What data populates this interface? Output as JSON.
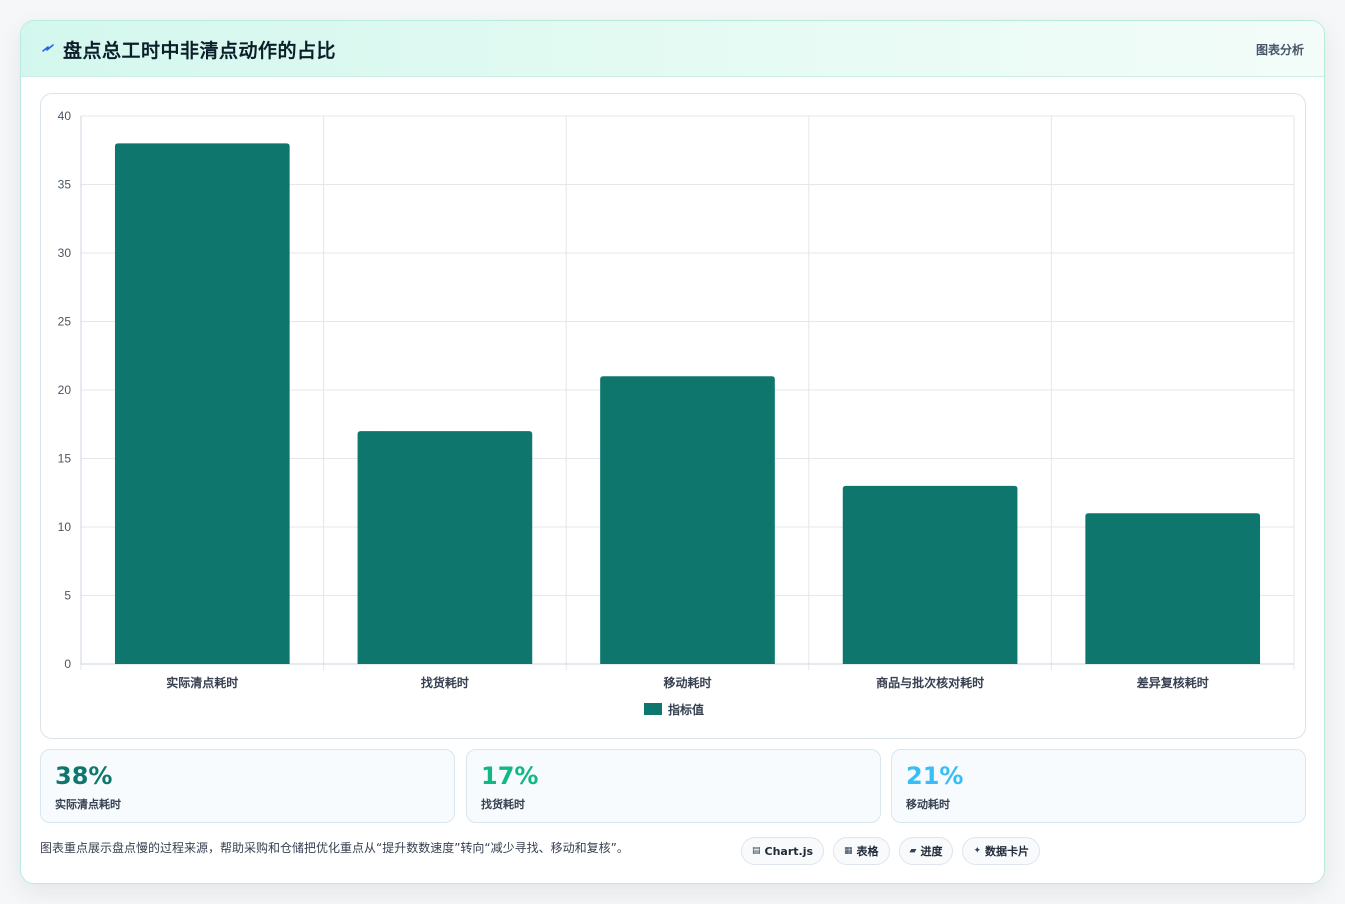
{
  "header": {
    "title": "盘点总工时中非清点动作的占比",
    "tag": "图表分析"
  },
  "chart_data": {
    "type": "bar",
    "categories": [
      "实际清点耗时",
      "找货耗时",
      "移动耗时",
      "商品与批次核对耗时",
      "差异复核耗时"
    ],
    "series": [
      {
        "name": "指标值",
        "values": [
          38,
          17,
          21,
          13,
          11
        ]
      }
    ],
    "ylim": [
      0,
      40
    ],
    "yticks": [
      0,
      5,
      10,
      15,
      20,
      25,
      30,
      35,
      40
    ],
    "grid": true,
    "legend": "bottom",
    "color": "#0f766e"
  },
  "stats": [
    {
      "value": "38%",
      "label": "实际清点耗时",
      "color": "#0f766e"
    },
    {
      "value": "17%",
      "label": "找货耗时",
      "color": "#10b981"
    },
    {
      "value": "21%",
      "label": "移动耗时",
      "color": "#38bdf8"
    }
  ],
  "footnote": "图表重点展示盘点慢的过程来源，帮助采购和仓储把优化重点从“提升数数速度”转向“减少寻找、移动和复核”。",
  "pills": [
    {
      "icon": "chart-icon",
      "glyph": "▤",
      "label": "Chart.js"
    },
    {
      "icon": "table-icon",
      "glyph": "▦",
      "label": "表格"
    },
    {
      "icon": "progress-icon",
      "glyph": "▰",
      "label": "进度"
    },
    {
      "icon": "sparkle-icon",
      "glyph": "✦",
      "label": "数据卡片"
    }
  ]
}
